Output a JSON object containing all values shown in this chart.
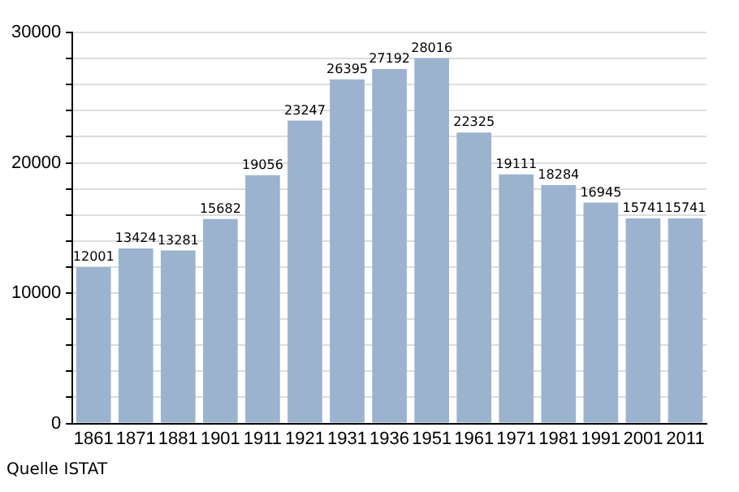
{
  "chart_data": {
    "type": "bar",
    "categories": [
      "1861",
      "1871",
      "1881",
      "1901",
      "1911",
      "1921",
      "1931",
      "1936",
      "1951",
      "1961",
      "1971",
      "1981",
      "1991",
      "2001",
      "2011"
    ],
    "values": [
      12001,
      13424,
      13281,
      15682,
      19056,
      23247,
      26395,
      27192,
      28016,
      22325,
      19111,
      18284,
      16945,
      15741,
      15741
    ],
    "data_labels": true,
    "color": "#9bb3cf",
    "ylim": [
      0,
      30000
    ],
    "yticks": [
      0,
      {
        "value": 2000,
        "label": null
      },
      {
        "value": 4000,
        "label": null
      },
      {
        "value": 6000,
        "label": null
      },
      {
        "value": 8000,
        "label": null
      },
      10000,
      {
        "value": 12000,
        "label": null
      },
      {
        "value": 14000,
        "label": null
      },
      {
        "value": 16000,
        "label": null
      },
      {
        "value": 18000,
        "label": null
      },
      20000,
      {
        "value": 22000,
        "label": null
      },
      {
        "value": 24000,
        "label": null
      },
      {
        "value": 26000,
        "label": null
      },
      {
        "value": 28000,
        "label": null
      },
      30000
    ],
    "grid": "y",
    "legend": false,
    "annotations": [
      "Quelle ISTAT"
    ]
  }
}
